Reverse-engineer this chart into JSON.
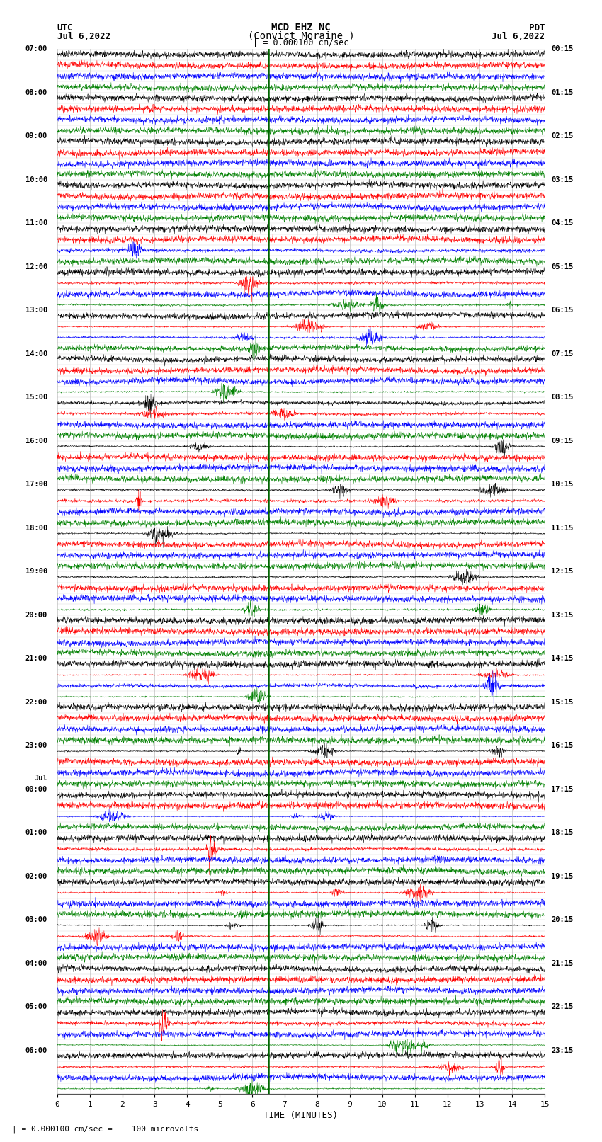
{
  "title_line1": "MCD EHZ NC",
  "title_line2": "(Convict Moraine )",
  "title_line3": "| = 0.000100 cm/sec",
  "left_header_line1": "UTC",
  "left_header_line2": "Jul 6,2022",
  "right_header_line1": "PDT",
  "right_header_line2": "Jul 6,2022",
  "xlabel": "TIME (MINUTES)",
  "footer": "| = 0.000100 cm/sec =    100 microvolts",
  "xmin": 0,
  "xmax": 15,
  "xticks": [
    0,
    1,
    2,
    3,
    4,
    5,
    6,
    7,
    8,
    9,
    10,
    11,
    12,
    13,
    14,
    15
  ],
  "trace_colors": [
    "black",
    "red",
    "blue",
    "green"
  ],
  "num_rows": 96,
  "vertical_line_x": 6.5,
  "vertical_line_color": "#006400",
  "background_color": "white",
  "grid_color": "#999999",
  "left_labels_raw": [
    [
      "07:00",
      0
    ],
    [
      "08:00",
      4
    ],
    [
      "09:00",
      8
    ],
    [
      "10:00",
      12
    ],
    [
      "11:00",
      16
    ],
    [
      "12:00",
      20
    ],
    [
      "13:00",
      24
    ],
    [
      "14:00",
      28
    ],
    [
      "15:00",
      32
    ],
    [
      "16:00",
      36
    ],
    [
      "17:00",
      40
    ],
    [
      "18:00",
      44
    ],
    [
      "19:00",
      48
    ],
    [
      "20:00",
      52
    ],
    [
      "21:00",
      56
    ],
    [
      "22:00",
      60
    ],
    [
      "23:00",
      64
    ],
    [
      "Jul",
      67
    ],
    [
      "00:00",
      68
    ],
    [
      "01:00",
      72
    ],
    [
      "02:00",
      76
    ],
    [
      "03:00",
      80
    ],
    [
      "04:00",
      84
    ],
    [
      "05:00",
      88
    ],
    [
      "06:00",
      92
    ]
  ],
  "right_labels_raw": [
    [
      "00:15",
      0
    ],
    [
      "01:15",
      4
    ],
    [
      "02:15",
      8
    ],
    [
      "03:15",
      12
    ],
    [
      "04:15",
      16
    ],
    [
      "05:15",
      20
    ],
    [
      "06:15",
      24
    ],
    [
      "07:15",
      28
    ],
    [
      "08:15",
      32
    ],
    [
      "09:15",
      36
    ],
    [
      "10:15",
      40
    ],
    [
      "11:15",
      44
    ],
    [
      "12:15",
      48
    ],
    [
      "13:15",
      52
    ],
    [
      "14:15",
      56
    ],
    [
      "15:15",
      60
    ],
    [
      "16:15",
      64
    ],
    [
      "17:15",
      68
    ],
    [
      "18:15",
      72
    ],
    [
      "19:15",
      76
    ],
    [
      "20:15",
      80
    ],
    [
      "21:15",
      84
    ],
    [
      "22:15",
      88
    ],
    [
      "23:15",
      92
    ]
  ]
}
